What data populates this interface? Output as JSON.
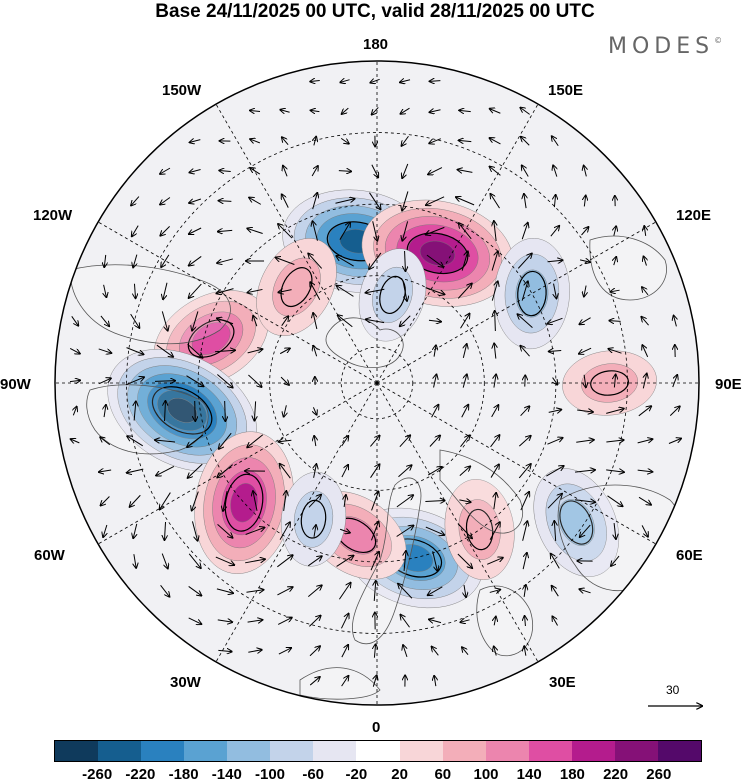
{
  "title": "Base 24/11/2025 00 UTC, valid 28/11/2025 00 UTC",
  "brand": "MODES",
  "brand_mark": "©",
  "longitude_labels": {
    "top": "180",
    "left": "90W",
    "right": "90E",
    "bottom": "0",
    "upper_left_1": "150W",
    "upper_left_2": "120W",
    "upper_right_1": "150E",
    "upper_right_2": "120E",
    "lower_left_1": "60W",
    "lower_left_2": "30W",
    "lower_right_1": "60E",
    "lower_right_2": "30E"
  },
  "reference_vector": {
    "label": "30"
  },
  "colorbar": {
    "ticks": [
      "-260",
      "-220",
      "-180",
      "-140",
      "-100",
      "-60",
      "-20",
      "20",
      "60",
      "100",
      "140",
      "180",
      "220",
      "260"
    ],
    "colors": [
      "#0f3a5c",
      "#155e8f",
      "#2a81bf",
      "#5aa2d2",
      "#92bde0",
      "#c3d3ea",
      "#e6e6f2",
      "#ffffff",
      "#f8d6d8",
      "#f3aeb9",
      "#ec85ae",
      "#df4ea3",
      "#b41c8d",
      "#851177",
      "#54096a"
    ]
  },
  "anomalies": [
    {
      "lon": -172,
      "lat": 50,
      "value": -230
    },
    {
      "lon": 155,
      "lat": 50,
      "value": 240
    },
    {
      "lon": -105,
      "lat": 42,
      "value": 150
    },
    {
      "lon": -82,
      "lat": 35,
      "value": -260
    },
    {
      "lon": -48,
      "lat": 40,
      "value": 210
    },
    {
      "lon": 12,
      "lat": 40,
      "value": -200
    },
    {
      "lon": -8,
      "lat": 47,
      "value": 110
    },
    {
      "lon": -140,
      "lat": 55,
      "value": 90
    },
    {
      "lon": 170,
      "lat": 65,
      "value": -60
    },
    {
      "lon": 120,
      "lat": 40,
      "value": -110
    },
    {
      "lon": 55,
      "lat": 22,
      "value": -120
    },
    {
      "lon": 35,
      "lat": 40,
      "value": 80
    },
    {
      "lon": 90,
      "lat": 25,
      "value": 60
    },
    {
      "lon": -25,
      "lat": 48,
      "value": -60
    }
  ]
}
